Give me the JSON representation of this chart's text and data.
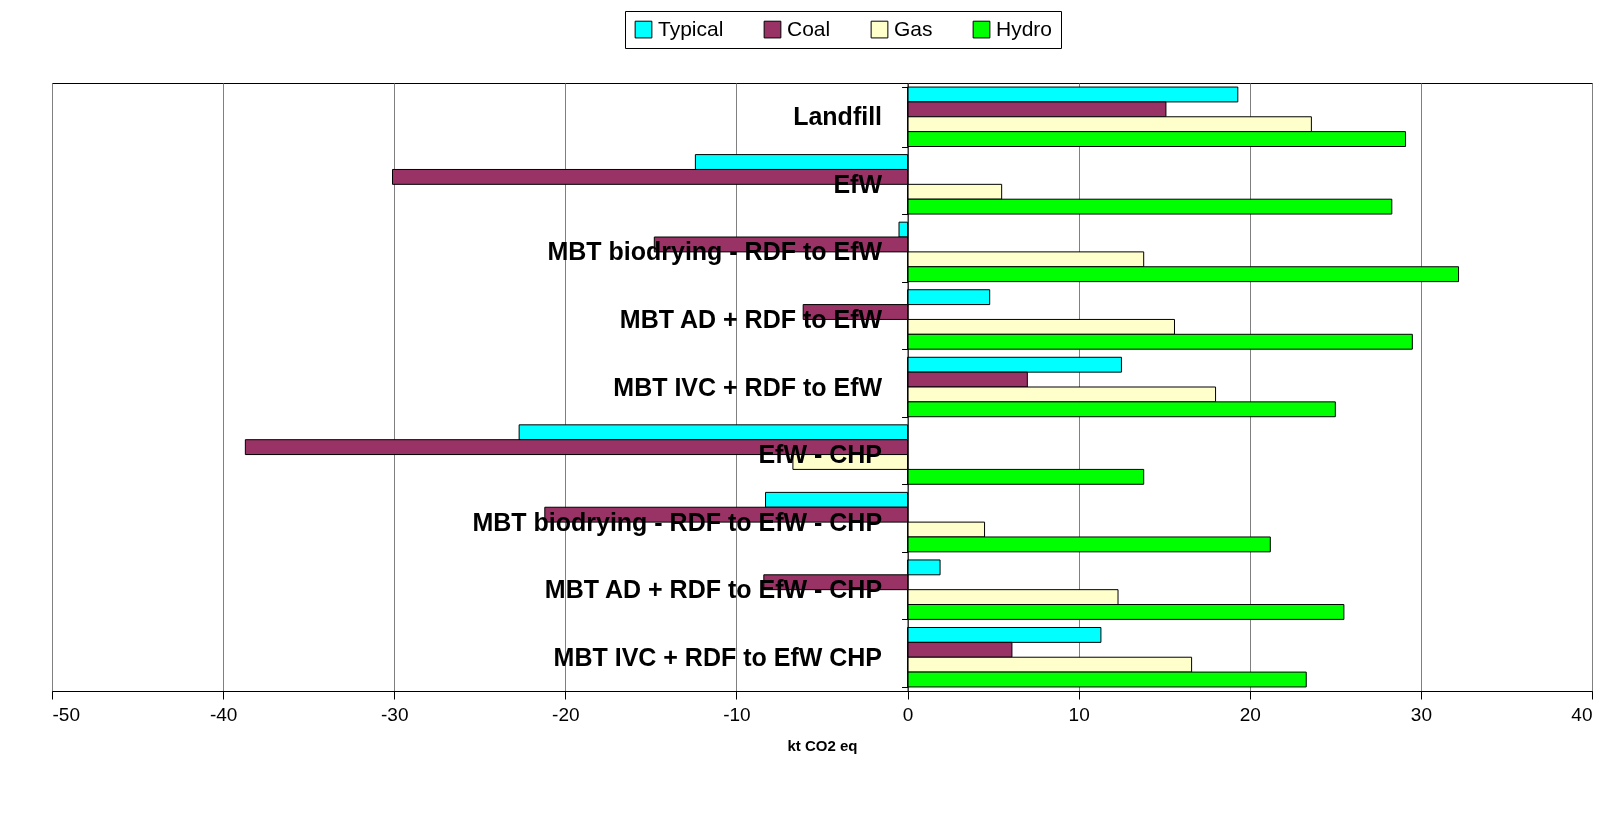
{
  "chart_data": {
    "type": "bar",
    "orientation": "horizontal",
    "xlabel": "kt CO2 eq",
    "categories": [
      "Landfill",
      "EfW",
      "MBT biodrying - RDF to EfW",
      "MBT AD + RDF to EfW",
      "MBT IVC + RDF to EfW",
      "EfW - CHP",
      "MBT biodrying - RDF to EfW - CHP",
      "MBT AD + RDF to EfW - CHP",
      "MBT IVC + RDF to EfW CHP"
    ],
    "series": [
      {
        "name": "Typical",
        "color": "#00ffff",
        "values": [
          19.3,
          -12.4,
          -0.5,
          4.8,
          12.5,
          -22.7,
          -8.3,
          1.9,
          11.3
        ]
      },
      {
        "name": "Coal",
        "color": "#993366",
        "values": [
          15.1,
          -30.1,
          -14.8,
          -6.1,
          7.0,
          -38.7,
          -21.2,
          -8.4,
          6.1
        ]
      },
      {
        "name": "Gas",
        "color": "#ffffcc",
        "values": [
          23.6,
          5.5,
          13.8,
          15.6,
          18.0,
          -6.7,
          4.5,
          12.3,
          16.6
        ]
      },
      {
        "name": "Hydro",
        "color": "#00ff00",
        "values": [
          29.1,
          28.3,
          32.2,
          29.5,
          25.0,
          13.8,
          21.2,
          25.5,
          23.3
        ]
      }
    ],
    "xlim": [
      -50,
      40
    ],
    "xticks": [
      -50,
      -40,
      -30,
      -20,
      -10,
      0,
      10,
      20,
      30,
      40
    ],
    "grid": "x",
    "legend": "top"
  }
}
